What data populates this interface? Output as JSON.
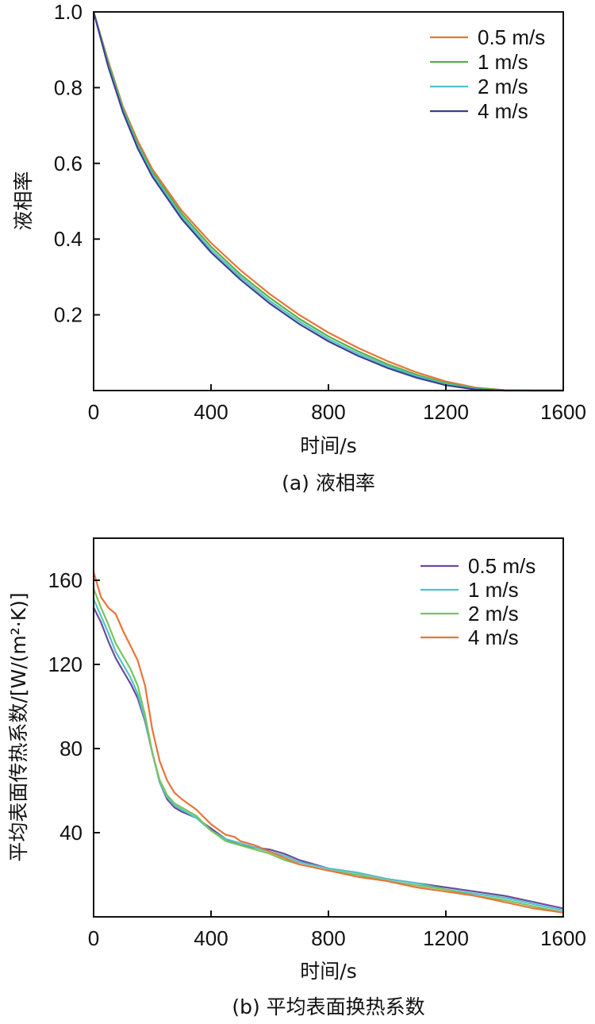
{
  "chart_data": [
    {
      "id": "a",
      "type": "line",
      "caption": "(a) 液相率",
      "xlabel": "时间/s",
      "ylabel": "液相率",
      "xlim": [
        0,
        1600
      ],
      "ylim": [
        0,
        1.0
      ],
      "xticks": [
        "0",
        "400",
        "800",
        "1200",
        "1600"
      ],
      "yticks": [
        "0.2",
        "0.4",
        "0.6",
        "0.8",
        "1.0"
      ],
      "legend_position": "top-right",
      "series": [
        {
          "name": "0.5 m/s",
          "color": "#e8743b",
          "x": [
            0,
            50,
            100,
            150,
            200,
            300,
            400,
            500,
            600,
            700,
            800,
            900,
            1000,
            1100,
            1200,
            1300,
            1400,
            1500,
            1600
          ],
          "y": [
            1.0,
            0.87,
            0.75,
            0.66,
            0.585,
            0.475,
            0.39,
            0.318,
            0.255,
            0.2,
            0.153,
            0.113,
            0.078,
            0.048,
            0.024,
            0.008,
            0.001,
            0.0,
            0.0
          ]
        },
        {
          "name": "1 m/s",
          "color": "#58b146",
          "x": [
            0,
            50,
            100,
            150,
            200,
            300,
            400,
            500,
            600,
            700,
            800,
            900,
            1000,
            1100,
            1200,
            1300,
            1400,
            1500,
            1600
          ],
          "y": [
            1.0,
            0.865,
            0.745,
            0.652,
            0.578,
            0.467,
            0.38,
            0.307,
            0.245,
            0.19,
            0.143,
            0.104,
            0.07,
            0.042,
            0.02,
            0.006,
            0.001,
            0.0,
            0.0
          ]
        },
        {
          "name": "2 m/s",
          "color": "#4fc3c8",
          "x": [
            0,
            50,
            100,
            150,
            200,
            300,
            400,
            500,
            600,
            700,
            800,
            900,
            1000,
            1100,
            1200,
            1300,
            1400,
            1500,
            1600
          ],
          "y": [
            1.0,
            0.86,
            0.74,
            0.646,
            0.572,
            0.46,
            0.372,
            0.3,
            0.237,
            0.183,
            0.136,
            0.098,
            0.065,
            0.038,
            0.017,
            0.004,
            0.0,
            0.0,
            0.0
          ]
        },
        {
          "name": "4 m/s",
          "color": "#3e3f8f",
          "x": [
            0,
            50,
            100,
            150,
            200,
            300,
            400,
            500,
            600,
            700,
            800,
            900,
            1000,
            1100,
            1200,
            1300,
            1400,
            1500,
            1600
          ],
          "y": [
            1.0,
            0.855,
            0.735,
            0.64,
            0.565,
            0.453,
            0.365,
            0.293,
            0.23,
            0.176,
            0.13,
            0.092,
            0.06,
            0.034,
            0.014,
            0.003,
            0.0,
            0.0,
            0.0
          ]
        }
      ]
    },
    {
      "id": "b",
      "type": "line",
      "caption": "(b) 平均表面换热系数",
      "xlabel": "时间/s",
      "ylabel": "平均表面传热系数/[W/(m²·K)]",
      "xlim": [
        0,
        1600
      ],
      "ylim": [
        0,
        180
      ],
      "xticks": [
        "0",
        "400",
        "800",
        "1200",
        "1600"
      ],
      "yticks": [
        "40",
        "80",
        "120",
        "160"
      ],
      "legend_position": "top-right",
      "series": [
        {
          "name": "0.5 m/s",
          "color": "#6a4c9c",
          "x": [
            0,
            25,
            50,
            75,
            100,
            125,
            150,
            175,
            200,
            225,
            250,
            275,
            300,
            350,
            400,
            450,
            500,
            550,
            600,
            650,
            700,
            800,
            900,
            1000,
            1100,
            1200,
            1300,
            1400,
            1500,
            1600
          ],
          "y": [
            147,
            140,
            131,
            123,
            117,
            111,
            104,
            93,
            78,
            64,
            56,
            52,
            50,
            47,
            42,
            37,
            34,
            33,
            32,
            30,
            27,
            23,
            21,
            18,
            16,
            14,
            12,
            10,
            7,
            4
          ]
        },
        {
          "name": "1 m/s",
          "color": "#4fc3c8",
          "x": [
            0,
            25,
            50,
            75,
            100,
            125,
            150,
            175,
            200,
            225,
            250,
            275,
            300,
            350,
            400,
            450,
            500,
            550,
            600,
            650,
            700,
            800,
            900,
            1000,
            1100,
            1200,
            1300,
            1400,
            1500,
            1600
          ],
          "y": [
            151,
            143,
            135,
            126,
            120,
            114,
            106,
            94,
            78,
            64,
            57,
            53,
            51,
            47,
            41,
            37,
            35,
            33,
            31,
            29,
            26,
            23,
            21,
            18,
            16,
            13,
            11,
            9,
            6,
            3
          ]
        },
        {
          "name": "2 m/s",
          "color": "#7cc35a",
          "x": [
            0,
            25,
            50,
            75,
            100,
            125,
            150,
            175,
            200,
            225,
            250,
            275,
            300,
            350,
            400,
            450,
            500,
            550,
            600,
            650,
            700,
            800,
            900,
            1000,
            1100,
            1200,
            1300,
            1400,
            1500,
            1600
          ],
          "y": [
            156,
            147,
            139,
            130,
            124,
            118,
            110,
            96,
            78,
            65,
            58,
            54,
            52,
            48,
            41,
            36,
            34,
            32,
            30,
            27,
            25,
            22,
            20,
            17,
            15,
            13,
            10,
            8,
            5,
            2
          ]
        },
        {
          "name": "4 m/s",
          "color": "#e8743b",
          "x": [
            0,
            25,
            50,
            75,
            100,
            125,
            150,
            175,
            200,
            225,
            250,
            275,
            300,
            350,
            400,
            450,
            480,
            500,
            550,
            600,
            650,
            700,
            800,
            900,
            1000,
            1100,
            1200,
            1300,
            1400,
            1500,
            1600
          ],
          "y": [
            164,
            152,
            147,
            144,
            136,
            129,
            122,
            110,
            89,
            74,
            65,
            59,
            56,
            51,
            44,
            39,
            38,
            36,
            34,
            31,
            28,
            25,
            22,
            19,
            17,
            14,
            12,
            10,
            7,
            4,
            2
          ]
        }
      ]
    }
  ]
}
